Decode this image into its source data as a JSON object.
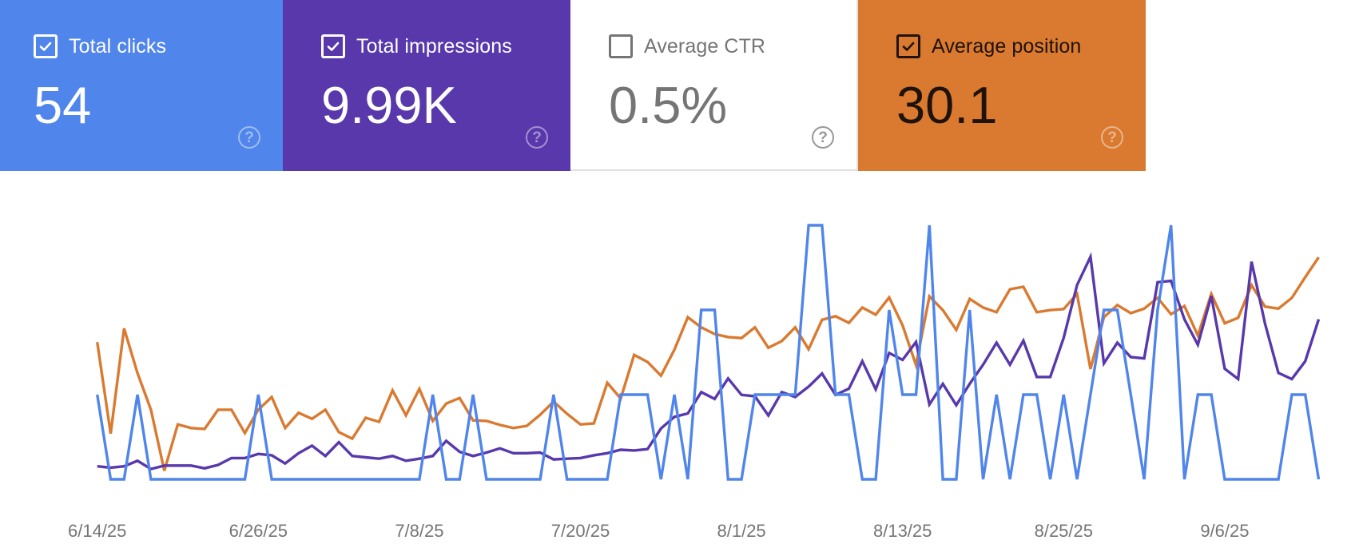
{
  "metrics": [
    {
      "label": "Total clicks",
      "value": "54",
      "checked": true,
      "bg": "#5085EC",
      "fg": "#FFFFFF",
      "help_icon": "help-circle-icon"
    },
    {
      "label": "Total impressions",
      "value": "9.99K",
      "checked": true,
      "bg": "#5838AB",
      "fg": "#FFFFFF",
      "help_icon": "help-circle-icon"
    },
    {
      "label": "Average CTR",
      "value": "0.5%",
      "checked": false,
      "bg": "#FFFFFF",
      "fg": "#757575",
      "help_icon": "help-circle-icon"
    },
    {
      "label": "Average position",
      "value": "30.1",
      "checked": true,
      "bg": "#D97A30",
      "fg": "#1F1209",
      "help_icon": "help-circle-icon"
    }
  ],
  "chart_data": {
    "type": "line",
    "title": "",
    "xlabel": "",
    "ylabel": "",
    "grid": false,
    "legend": "none",
    "x_start": "6/14/25",
    "x_end": "9/13/25",
    "x_ticks": [
      "6/14/25",
      "6/26/25",
      "7/8/25",
      "7/20/25",
      "8/1/25",
      "8/13/25",
      "8/25/25",
      "9/6/25"
    ],
    "x_tick_interval_days": 12,
    "series": [
      {
        "name": "Total clicks",
        "color": "#5085EC",
        "ylim": [
          0,
          3
        ],
        "values": [
          1,
          0,
          0,
          1,
          0,
          0,
          0,
          0,
          0,
          0,
          0,
          0,
          1,
          0,
          0,
          0,
          0,
          0,
          0,
          0,
          0,
          0,
          0,
          0,
          0,
          1,
          0,
          0,
          1,
          0,
          0,
          0,
          0,
          0,
          1,
          0,
          0,
          0,
          0,
          1,
          1,
          1,
          0,
          1,
          0,
          2,
          2,
          0,
          0,
          1,
          1,
          1,
          1,
          3,
          3,
          1,
          1,
          0,
          0,
          2,
          1,
          1,
          3,
          0,
          0,
          2,
          0,
          1,
          0,
          1,
          1,
          0,
          1,
          0,
          1,
          2,
          2,
          1,
          0,
          2,
          3,
          0,
          1,
          1,
          0,
          0,
          0,
          0,
          0,
          1,
          1,
          0
        ]
      },
      {
        "name": "Total impressions",
        "color": "#5838AB",
        "ylim": [
          0,
          370
        ],
        "values": [
          19,
          17,
          19,
          27,
          15,
          20,
          20,
          20,
          16,
          21,
          31,
          31,
          37,
          35,
          23,
          38,
          49,
          34,
          54,
          34,
          32,
          30,
          34,
          27,
          30,
          34,
          56,
          40,
          34,
          39,
          45,
          38,
          38,
          39,
          29,
          30,
          31,
          35,
          38,
          43,
          42,
          44,
          74,
          91,
          96,
          127,
          117,
          147,
          123,
          121,
          93,
          127,
          120,
          135,
          154,
          123,
          132,
          172,
          131,
          184,
          174,
          200,
          109,
          139,
          108,
          139,
          167,
          199,
          167,
          202,
          149,
          149,
          206,
          283,
          324,
          169,
          199,
          178,
          176,
          287,
          289,
          233,
          196,
          267,
          161,
          146,
          317,
          227,
          155,
          146,
          172,
          233
        ]
      },
      {
        "name": "Average position",
        "color": "#D97A30",
        "ylim": [
          60,
          10
        ],
        "inverted": true,
        "values": [
          33.0,
          51.0,
          30.3,
          39.1,
          46.3,
          58.3,
          49.2,
          49.9,
          50.1,
          46.3,
          46.3,
          50.9,
          46.3,
          43.8,
          49.9,
          46.9,
          48.1,
          46.3,
          50.7,
          52.0,
          47.9,
          48.7,
          42.5,
          47.4,
          42.2,
          48.5,
          45.1,
          44.0,
          48.4,
          48.5,
          49.3,
          49.9,
          49.5,
          47.3,
          44.7,
          47.1,
          49.2,
          49.0,
          41.0,
          44.1,
          35.5,
          36.9,
          39.6,
          34.5,
          28.1,
          30.1,
          31.4,
          32.0,
          32.2,
          30.1,
          34.1,
          32.8,
          30.1,
          34.4,
          28.6,
          27.9,
          29.2,
          26.2,
          27.6,
          24.2,
          29.7,
          37.5,
          24.0,
          26.7,
          30.6,
          24.5,
          26.2,
          27.1,
          22.6,
          22.1,
          27.1,
          26.7,
          26.5,
          23.5,
          38.3,
          28.1,
          25.7,
          27.3,
          26.4,
          24.3,
          27.5,
          25.9,
          31.7,
          23.5,
          29.3,
          28.2,
          21.8,
          26.0,
          26.4,
          24.3,
          20.2,
          16.3
        ]
      }
    ]
  }
}
